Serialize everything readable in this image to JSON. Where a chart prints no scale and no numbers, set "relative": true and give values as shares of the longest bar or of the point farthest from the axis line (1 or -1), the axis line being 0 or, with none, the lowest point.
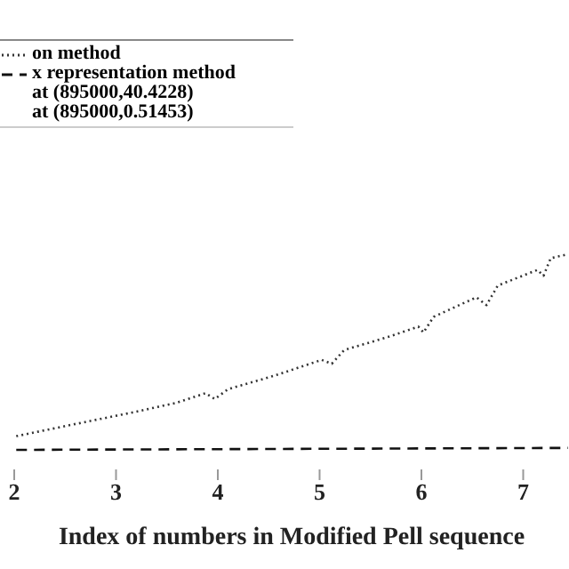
{
  "chart_data": {
    "type": "line",
    "xlabel": "Index of numbers in Modified Pell sequence",
    "relative": true,
    "xlim": [
      2,
      7.45
    ],
    "xticks": [
      2,
      3,
      4,
      5,
      6,
      7
    ],
    "legend": "top left",
    "marker": "none",
    "annotations": [
      "at (895000,40.4228)",
      "at (895000,0.51453)"
    ],
    "series": [
      {
        "name": "on method",
        "color": "#333333",
        "line_style": "dotted",
        "x": [
          2.02,
          2.58,
          3.15,
          3.59,
          3.88,
          3.97,
          4.1,
          4.56,
          5.02,
          5.12,
          5.24,
          5.69,
          5.97,
          6.02,
          6.12,
          6.54,
          6.64,
          6.75,
          7.14,
          7.2,
          7.27,
          7.44
        ],
        "values": [
          0.07,
          0.13,
          0.19,
          0.24,
          0.29,
          0.26,
          0.31,
          0.38,
          0.46,
          0.44,
          0.51,
          0.58,
          0.63,
          0.6,
          0.68,
          0.78,
          0.74,
          0.84,
          0.92,
          0.89,
          0.98,
          1
        ]
      },
      {
        "name": "x representation method",
        "color": "#111111",
        "line_style": "dashed",
        "x": [
          2.02,
          7.44
        ],
        "values": [
          0,
          0.01
        ]
      }
    ]
  }
}
